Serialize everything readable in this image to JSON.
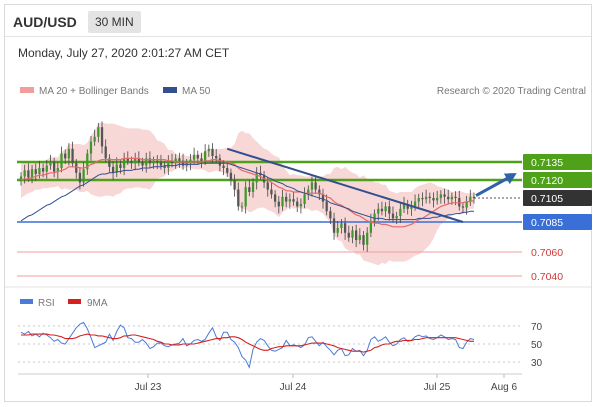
{
  "header": {
    "pair": "AUD/USD",
    "timeframe": "30 MIN",
    "datetime": "Monday, July 27, 2020 2:01:27 AM CET"
  },
  "legend": {
    "ma20_bb": "MA 20 + Bollinger Bands",
    "ma50": "MA 50",
    "credit": "Research © 2020 Trading Central",
    "rsi": "RSI",
    "rsi_ma": "9MA"
  },
  "colors": {
    "resistance": "#4ea119",
    "support": "#3a6fd8",
    "bollinger": "#f6c9c9",
    "ma20": "#e36b6b",
    "ma50": "#324f8e",
    "current": "#333333",
    "minor_support": "#f29c9c",
    "arrow": "#2f63a8",
    "rsi_line": "#4a7bd8",
    "rsi_ma_line": "#d62020"
  },
  "chart_data": [
    {
      "type": "candlestick",
      "title": "AUD/USD 30 MIN",
      "x_ticks": [
        "Jul 23",
        "Jul 24",
        "Jul 25",
        "Aug 6"
      ],
      "y_range": [
        0.7028,
        0.7178
      ],
      "series": [
        {
          "name": "AUD/USD",
          "close": [
            0.7123,
            0.7128,
            0.7122,
            0.7129,
            0.7125,
            0.713,
            0.7127,
            0.7132,
            0.7135,
            0.7127,
            0.713,
            0.7142,
            0.7138,
            0.7146,
            0.7134,
            0.7126,
            0.7118,
            0.7129,
            0.7142,
            0.7152,
            0.7156,
            0.7164,
            0.7148,
            0.7138,
            0.7131,
            0.7126,
            0.7133,
            0.713,
            0.7138,
            0.7136,
            0.7134,
            0.7138,
            0.7135,
            0.7132,
            0.7138,
            0.7134,
            0.7136,
            0.7135,
            0.7132,
            0.713,
            0.7136,
            0.7134,
            0.7138,
            0.7136,
            0.7132,
            0.7134,
            0.7137,
            0.7141,
            0.7138,
            0.7136,
            0.7144,
            0.7146,
            0.714,
            0.7138,
            0.7132,
            0.713,
            0.7126,
            0.712,
            0.7112,
            0.7098,
            0.7098,
            0.7114,
            0.711,
            0.7118,
            0.7126,
            0.7124,
            0.7118,
            0.7112,
            0.7108,
            0.7102,
            0.7098,
            0.7106,
            0.7102,
            0.7104,
            0.7102,
            0.7098,
            0.71,
            0.7108,
            0.7112,
            0.7118,
            0.7112,
            0.7108,
            0.7102,
            0.7094,
            0.7088,
            0.7076,
            0.708,
            0.7084,
            0.7076,
            0.7072,
            0.7078,
            0.707,
            0.7074,
            0.7066,
            0.7076,
            0.7086,
            0.7092,
            0.7096,
            0.7094,
            0.7098,
            0.7092,
            0.7088,
            0.709,
            0.7096,
            0.71,
            0.7096,
            0.7098,
            0.7102,
            0.7105,
            0.7104,
            0.7106,
            0.7105,
            0.7103,
            0.7105,
            0.7108,
            0.7106,
            0.7104,
            0.7106,
            0.7105,
            0.7098,
            0.7097,
            0.7102,
            0.7106,
            0.7105
          ]
        },
        {
          "name": "MA 20",
          "values": [
            0.712,
            0.7121,
            0.7121,
            0.7122,
            0.7123,
            0.7124,
            0.7124,
            0.7125,
            0.7126,
            0.7126,
            0.7127,
            0.7128,
            0.7129,
            0.7131,
            0.7131,
            0.7131,
            0.713,
            0.713,
            0.7131,
            0.7133,
            0.7134,
            0.7136,
            0.7137,
            0.7137,
            0.7137,
            0.7137,
            0.7137,
            0.7137,
            0.7138,
            0.7138,
            0.7138,
            0.7138,
            0.7138,
            0.7137,
            0.7137,
            0.7137,
            0.7137,
            0.7137,
            0.7137,
            0.7137,
            0.7136,
            0.7136,
            0.7135,
            0.7135,
            0.7135,
            0.7135,
            0.7135,
            0.7135,
            0.7135,
            0.7135,
            0.7136,
            0.7136,
            0.7137,
            0.7137,
            0.7136,
            0.7136,
            0.7135,
            0.7134,
            0.7133,
            0.713,
            0.7128,
            0.7127,
            0.7126,
            0.7125,
            0.7124,
            0.7123,
            0.7121,
            0.712,
            0.7118,
            0.7116,
            0.7114,
            0.7113,
            0.7111,
            0.7111,
            0.711,
            0.711,
            0.711,
            0.7109,
            0.7109,
            0.7109,
            0.7109,
            0.7109,
            0.7108,
            0.7106,
            0.7105,
            0.7102,
            0.71,
            0.7099,
            0.7097,
            0.7095,
            0.7093,
            0.7091,
            0.709,
            0.7088,
            0.7086,
            0.7085,
            0.7084,
            0.7084,
            0.7083,
            0.7083,
            0.7082,
            0.7081,
            0.7081,
            0.7081,
            0.7081,
            0.7082,
            0.7083,
            0.7085,
            0.7087,
            0.7088,
            0.709,
            0.7092,
            0.7094,
            0.7096,
            0.7098,
            0.7099,
            0.71,
            0.7101,
            0.7101,
            0.7101,
            0.7101,
            0.7102,
            0.7102,
            0.7103
          ]
        },
        {
          "name": "Bollinger Upper",
          "values": [
            0.7135,
            0.7135,
            0.7134,
            0.7135,
            0.7134,
            0.7136,
            0.7135,
            0.7137,
            0.7139,
            0.7139,
            0.7139,
            0.7144,
            0.7145,
            0.715,
            0.715,
            0.715,
            0.715,
            0.7149,
            0.7151,
            0.7157,
            0.7161,
            0.7167,
            0.7168,
            0.7167,
            0.7167,
            0.7167,
            0.7166,
            0.7165,
            0.7164,
            0.7163,
            0.7163,
            0.7163,
            0.7163,
            0.7162,
            0.7162,
            0.7161,
            0.7158,
            0.7153,
            0.7152,
            0.715,
            0.7145,
            0.7145,
            0.7142,
            0.714,
            0.7141,
            0.714,
            0.714,
            0.7141,
            0.7141,
            0.7142,
            0.7144,
            0.7146,
            0.7146,
            0.7145,
            0.7146,
            0.7146,
            0.7147,
            0.7147,
            0.715,
            0.7159,
            0.7161,
            0.7159,
            0.7159,
            0.7155,
            0.7152,
            0.7149,
            0.7146,
            0.7145,
            0.7142,
            0.714,
            0.7139,
            0.7133,
            0.7128,
            0.7124,
            0.7125,
            0.7124,
            0.7124,
            0.7123,
            0.7123,
            0.7124,
            0.7123,
            0.7123,
            0.7123,
            0.7125,
            0.7125,
            0.713,
            0.7131,
            0.7129,
            0.7131,
            0.7128,
            0.7126,
            0.7125,
            0.7122,
            0.7124,
            0.7121,
            0.712,
            0.7118,
            0.7118,
            0.7116,
            0.7116,
            0.7111,
            0.711,
            0.7109,
            0.711,
            0.711,
            0.711,
            0.711,
            0.7113,
            0.7115,
            0.7116,
            0.7117,
            0.7118,
            0.7117,
            0.7115,
            0.7114,
            0.7113,
            0.7112,
            0.711,
            0.711,
            0.7111,
            0.711,
            0.7109,
            0.7109,
            0.711
          ]
        },
        {
          "name": "Bollinger Lower",
          "values": [
            0.7105,
            0.7107,
            0.7109,
            0.711,
            0.7112,
            0.7112,
            0.7113,
            0.7113,
            0.7114,
            0.7114,
            0.7115,
            0.7112,
            0.7113,
            0.7112,
            0.7112,
            0.7112,
            0.711,
            0.711,
            0.7111,
            0.7108,
            0.7107,
            0.7106,
            0.7106,
            0.7107,
            0.7107,
            0.7106,
            0.7108,
            0.7109,
            0.7112,
            0.7113,
            0.7113,
            0.7114,
            0.7114,
            0.7113,
            0.7113,
            0.7112,
            0.7116,
            0.7121,
            0.7122,
            0.7123,
            0.7127,
            0.7127,
            0.7129,
            0.7131,
            0.7129,
            0.7131,
            0.713,
            0.7129,
            0.7129,
            0.7129,
            0.7128,
            0.7126,
            0.7127,
            0.7128,
            0.7127,
            0.7126,
            0.7124,
            0.712,
            0.7116,
            0.71,
            0.7095,
            0.7096,
            0.7093,
            0.7094,
            0.7096,
            0.7097,
            0.7097,
            0.7095,
            0.7094,
            0.7092,
            0.7089,
            0.7093,
            0.7095,
            0.7098,
            0.7096,
            0.7097,
            0.7096,
            0.7096,
            0.7096,
            0.7094,
            0.7095,
            0.7094,
            0.7092,
            0.7088,
            0.7085,
            0.7074,
            0.707,
            0.7069,
            0.7063,
            0.7061,
            0.7061,
            0.7058,
            0.7058,
            0.7053,
            0.7052,
            0.7051,
            0.705,
            0.7049,
            0.7051,
            0.705,
            0.7053,
            0.7052,
            0.7052,
            0.7052,
            0.7052,
            0.7053,
            0.7055,
            0.7057,
            0.7058,
            0.706,
            0.7063,
            0.7066,
            0.7071,
            0.7078,
            0.7083,
            0.7085,
            0.7088,
            0.7091,
            0.7093,
            0.7091,
            0.7092,
            0.7094,
            0.7096,
            0.7096
          ]
        },
        {
          "name": "MA 50",
          "values": [
            0.7086,
            0.7088,
            0.709,
            0.7091,
            0.7093,
            0.7095,
            0.7097,
            0.7099,
            0.71,
            0.7102,
            0.7104,
            0.7106,
            0.7107,
            0.7109,
            0.7111,
            0.7113,
            0.7115,
            0.7116,
            0.7118,
            0.712,
            0.7122,
            0.7124,
            0.7125,
            0.7125,
            0.7126,
            0.7126,
            0.7127,
            0.7127,
            0.7128,
            0.7128,
            0.7128,
            0.7129,
            0.7129,
            0.713,
            0.713,
            0.713,
            0.7131,
            0.7131,
            0.7131,
            0.7132,
            0.7132,
            0.7132,
            0.7132,
            0.7133,
            0.7133,
            0.7133,
            0.7133,
            0.7133,
            0.7133,
            0.7134,
            0.7134,
            0.7134,
            0.7134,
            0.7134,
            0.7134,
            0.7134,
            0.7134,
            0.7133,
            0.7132,
            0.7131,
            0.713,
            0.7129,
            0.7128,
            0.7127,
            0.7126,
            0.7125,
            0.7124,
            0.7122,
            0.7121,
            0.7119,
            0.7118,
            0.7117,
            0.7115,
            0.7114,
            0.7113,
            0.7111,
            0.711,
            0.7109,
            0.7108,
            0.7107,
            0.7106,
            0.7105,
            0.7104,
            0.7103,
            0.7101,
            0.71,
            0.7099,
            0.7098,
            0.7097,
            0.7096,
            0.7094,
            0.7093,
            0.7092,
            0.7091,
            0.709,
            0.7089,
            0.7088,
            0.7088,
            0.7088,
            0.7087,
            0.7087,
            0.7087,
            0.7087,
            0.7087,
            0.7087,
            0.7087,
            0.7087,
            0.7087,
            0.7088,
            0.7088,
            0.7088,
            0.7088,
            0.7089,
            0.7089,
            0.709,
            0.709,
            0.7091,
            0.7091,
            0.7092,
            0.7092,
            0.7093,
            0.7093,
            0.7094,
            0.7094
          ]
        }
      ],
      "levels": [
        {
          "value": 0.7135,
          "label": "0.7135",
          "kind": "resistance"
        },
        {
          "value": 0.712,
          "label": "0.7120",
          "kind": "resistance"
        },
        {
          "value": 0.7105,
          "label": "0.7105",
          "kind": "current"
        },
        {
          "value": 0.7085,
          "label": "0.7085",
          "kind": "support"
        },
        {
          "value": 0.706,
          "label": "0.7060",
          "kind": "minor_support"
        },
        {
          "value": 0.704,
          "label": "0.7040",
          "kind": "minor_support"
        }
      ],
      "trendline": {
        "from": {
          "index": 56,
          "value": 0.7146
        },
        "to": {
          "index": 120,
          "value": 0.7085
        }
      },
      "projection": {
        "from_value": 0.7107,
        "to_value": 0.713
      }
    },
    {
      "type": "line",
      "title": "RSI",
      "y_ticks": [
        70,
        50,
        30
      ],
      "y_range": [
        10,
        80
      ],
      "grid": true,
      "series": [
        {
          "name": "RSI",
          "values": [
            63,
            61,
            64,
            59,
            61,
            58,
            62,
            60,
            57,
            53,
            55,
            51,
            50,
            56,
            62,
            68,
            72,
            74,
            67,
            57,
            46,
            48,
            50,
            52,
            61,
            54,
            64,
            71,
            68,
            57,
            56,
            52,
            52,
            55,
            51,
            45,
            47,
            51,
            51,
            48,
            47,
            49,
            50,
            51,
            56,
            48,
            50,
            54,
            55,
            53,
            55,
            62,
            68,
            58,
            54,
            63,
            63,
            55,
            52,
            46,
            36,
            32,
            24,
            44,
            52,
            56,
            54,
            48,
            43,
            42,
            44,
            46,
            54,
            48,
            49,
            48,
            46,
            49,
            57,
            58,
            53,
            48,
            52,
            47,
            43,
            38,
            43,
            45,
            37,
            38,
            45,
            42,
            43,
            37,
            43,
            55,
            58,
            53,
            55,
            58,
            52,
            48,
            50,
            55,
            57,
            53,
            54,
            58,
            60,
            58,
            59,
            56,
            55,
            57,
            60,
            58,
            55,
            56,
            55,
            46,
            45,
            52,
            56,
            55
          ]
        },
        {
          "name": "9MA",
          "values": [
            60,
            60,
            60,
            61,
            61,
            61,
            61,
            61,
            60,
            60,
            59,
            58,
            56,
            56,
            56,
            57,
            59,
            60,
            61,
            60,
            60,
            59,
            59,
            58,
            57,
            56,
            56,
            57,
            59,
            59,
            60,
            60,
            59,
            58,
            57,
            56,
            55,
            53,
            52,
            50,
            50,
            49,
            49,
            49,
            50,
            50,
            50,
            50,
            51,
            52,
            53,
            54,
            55,
            56,
            56,
            57,
            57,
            58,
            58,
            57,
            55,
            52,
            50,
            48,
            46,
            44,
            43,
            43,
            45,
            46,
            47,
            47,
            48,
            48,
            48,
            48,
            48,
            49,
            50,
            51,
            51,
            51,
            51,
            50,
            49,
            48,
            46,
            45,
            44,
            43,
            42,
            42,
            42,
            41,
            42,
            43,
            46,
            47,
            49,
            50,
            50,
            52,
            53,
            53,
            54,
            54,
            54,
            55,
            55,
            56,
            57,
            57,
            57,
            57,
            57,
            57,
            57,
            57,
            57,
            56,
            55,
            54,
            53,
            53
          ]
        }
      ]
    }
  ]
}
